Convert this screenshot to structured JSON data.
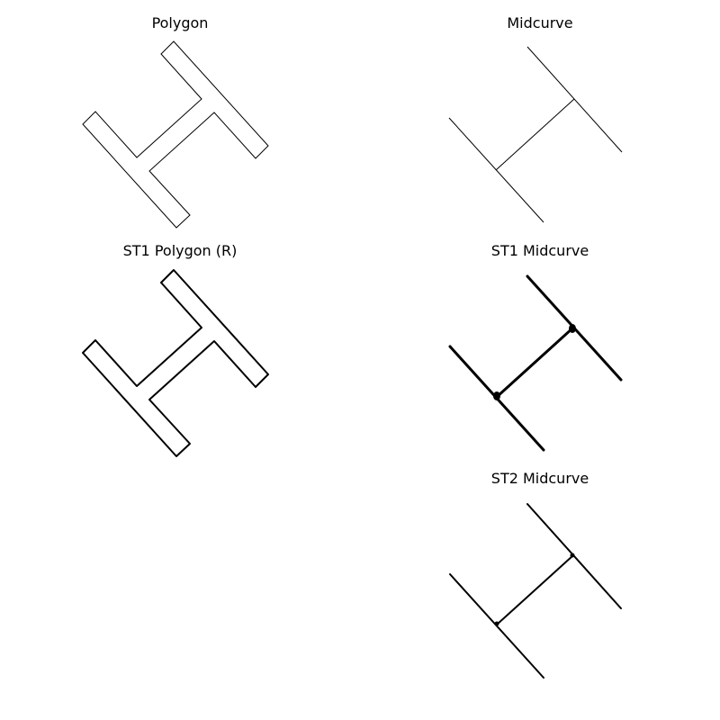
{
  "panels": {
    "polygon": {
      "title": "Polygon"
    },
    "midcurve": {
      "title": "Midcurve"
    },
    "st1_polygon": {
      "title": "ST1 Polygon (R)"
    },
    "st1_midcurve": {
      "title": "ST1 Midcurve"
    },
    "st2_midcurve": {
      "title": "ST2 Midcurve"
    }
  },
  "colors": {
    "background": "#ffffff",
    "stroke": "#000000"
  }
}
